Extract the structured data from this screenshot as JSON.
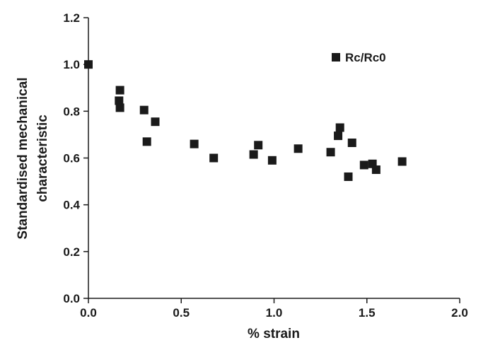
{
  "chart_data": {
    "type": "scatter",
    "xlabel": "% strain",
    "ylabel": [
      "Standardised mechanical",
      "characteristic"
    ],
    "xlim": [
      0,
      2
    ],
    "ylim": [
      0,
      1.2
    ],
    "x_ticks": [
      "0.0",
      "0.5",
      "1.0",
      "1.5",
      "2.0"
    ],
    "y_ticks": [
      "0.0",
      "0.2",
      "0.4",
      "0.6",
      "0.8",
      "1.0",
      "1.2"
    ],
    "legend": "top-right",
    "grid": false,
    "series": [
      {
        "name": "Rc/Rc0",
        "color": "#1a1a1a",
        "marker": "square",
        "points": [
          [
            0.0,
            1.0
          ],
          [
            0.17,
            0.89
          ],
          [
            0.165,
            0.845
          ],
          [
            0.17,
            0.815
          ],
          [
            0.3,
            0.805
          ],
          [
            0.36,
            0.755
          ],
          [
            0.315,
            0.67
          ],
          [
            0.57,
            0.66
          ],
          [
            0.675,
            0.6
          ],
          [
            0.89,
            0.615
          ],
          [
            0.915,
            0.655
          ],
          [
            0.99,
            0.59
          ],
          [
            1.13,
            0.64
          ],
          [
            1.305,
            0.625
          ],
          [
            1.345,
            0.695
          ],
          [
            1.355,
            0.73
          ],
          [
            1.42,
            0.665
          ],
          [
            1.485,
            0.57
          ],
          [
            1.53,
            0.575
          ],
          [
            1.55,
            0.55
          ],
          [
            1.4,
            0.52
          ],
          [
            1.69,
            0.585
          ]
        ]
      }
    ]
  }
}
